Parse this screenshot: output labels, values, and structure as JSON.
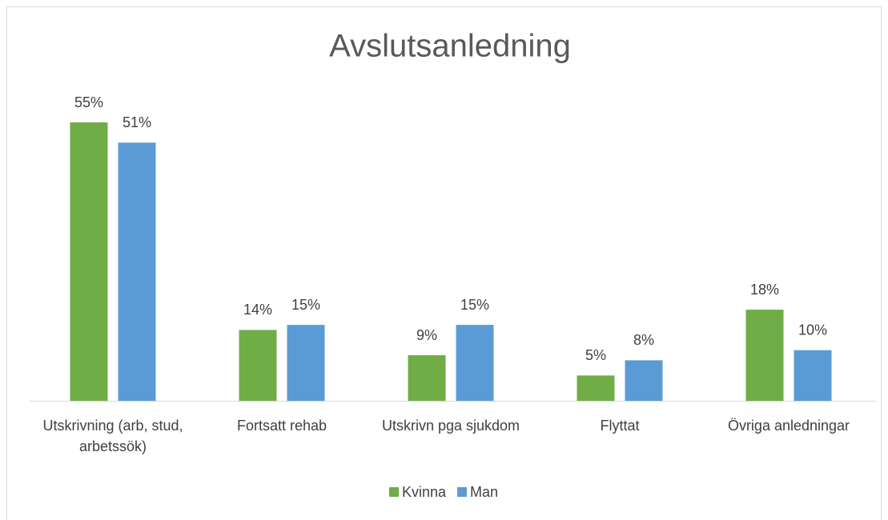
{
  "chart_data": {
    "type": "bar",
    "title": "Avslutsanledning",
    "categories": [
      "Utskrivning (arb, stud, arbetssök)",
      "Fortsatt rehab",
      "Utskrivn pga sjukdom",
      "Flyttat",
      "Övriga anledningar"
    ],
    "series": [
      {
        "name": "Kvinna",
        "color": "#70ad47",
        "values": [
          55,
          14,
          9,
          5,
          18
        ],
        "value_labels": [
          "55%",
          "14%",
          "9%",
          "5%",
          "18%"
        ]
      },
      {
        "name": "Man",
        "color": "#5b9bd5",
        "values": [
          51,
          15,
          15,
          8,
          10
        ],
        "value_labels": [
          "51%",
          "15%",
          "15%",
          "8%",
          "10%"
        ]
      }
    ],
    "legend": "bottom"
  }
}
